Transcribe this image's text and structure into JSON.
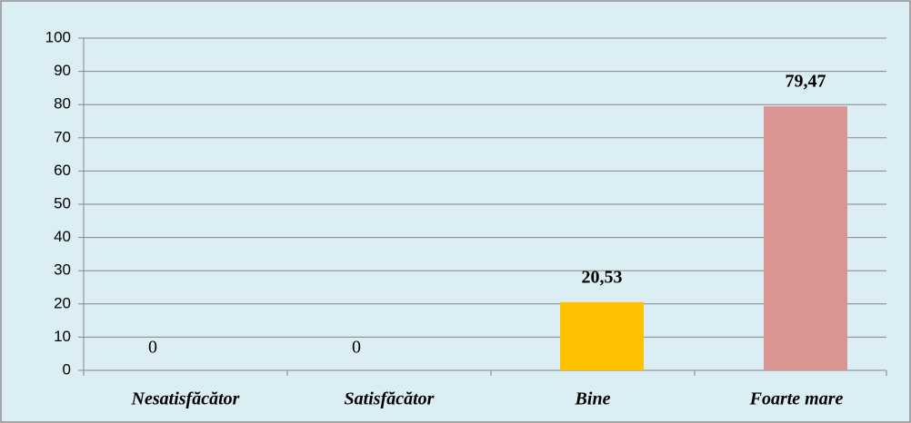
{
  "chart_data": {
    "type": "bar",
    "categories": [
      "Nesatisfăcător",
      "Satisfăcător",
      "Bine",
      "Foarte mare"
    ],
    "values": [
      0,
      0,
      20.53,
      79.47
    ],
    "value_labels": [
      "0",
      "0",
      "20,53",
      "79,47"
    ],
    "colors": [
      null,
      null,
      "#ffc000",
      "#d99594"
    ],
    "ylim": [
      0,
      100
    ],
    "yticks": [
      0,
      10,
      20,
      30,
      40,
      50,
      60,
      70,
      80,
      90,
      100
    ],
    "grid": true
  }
}
